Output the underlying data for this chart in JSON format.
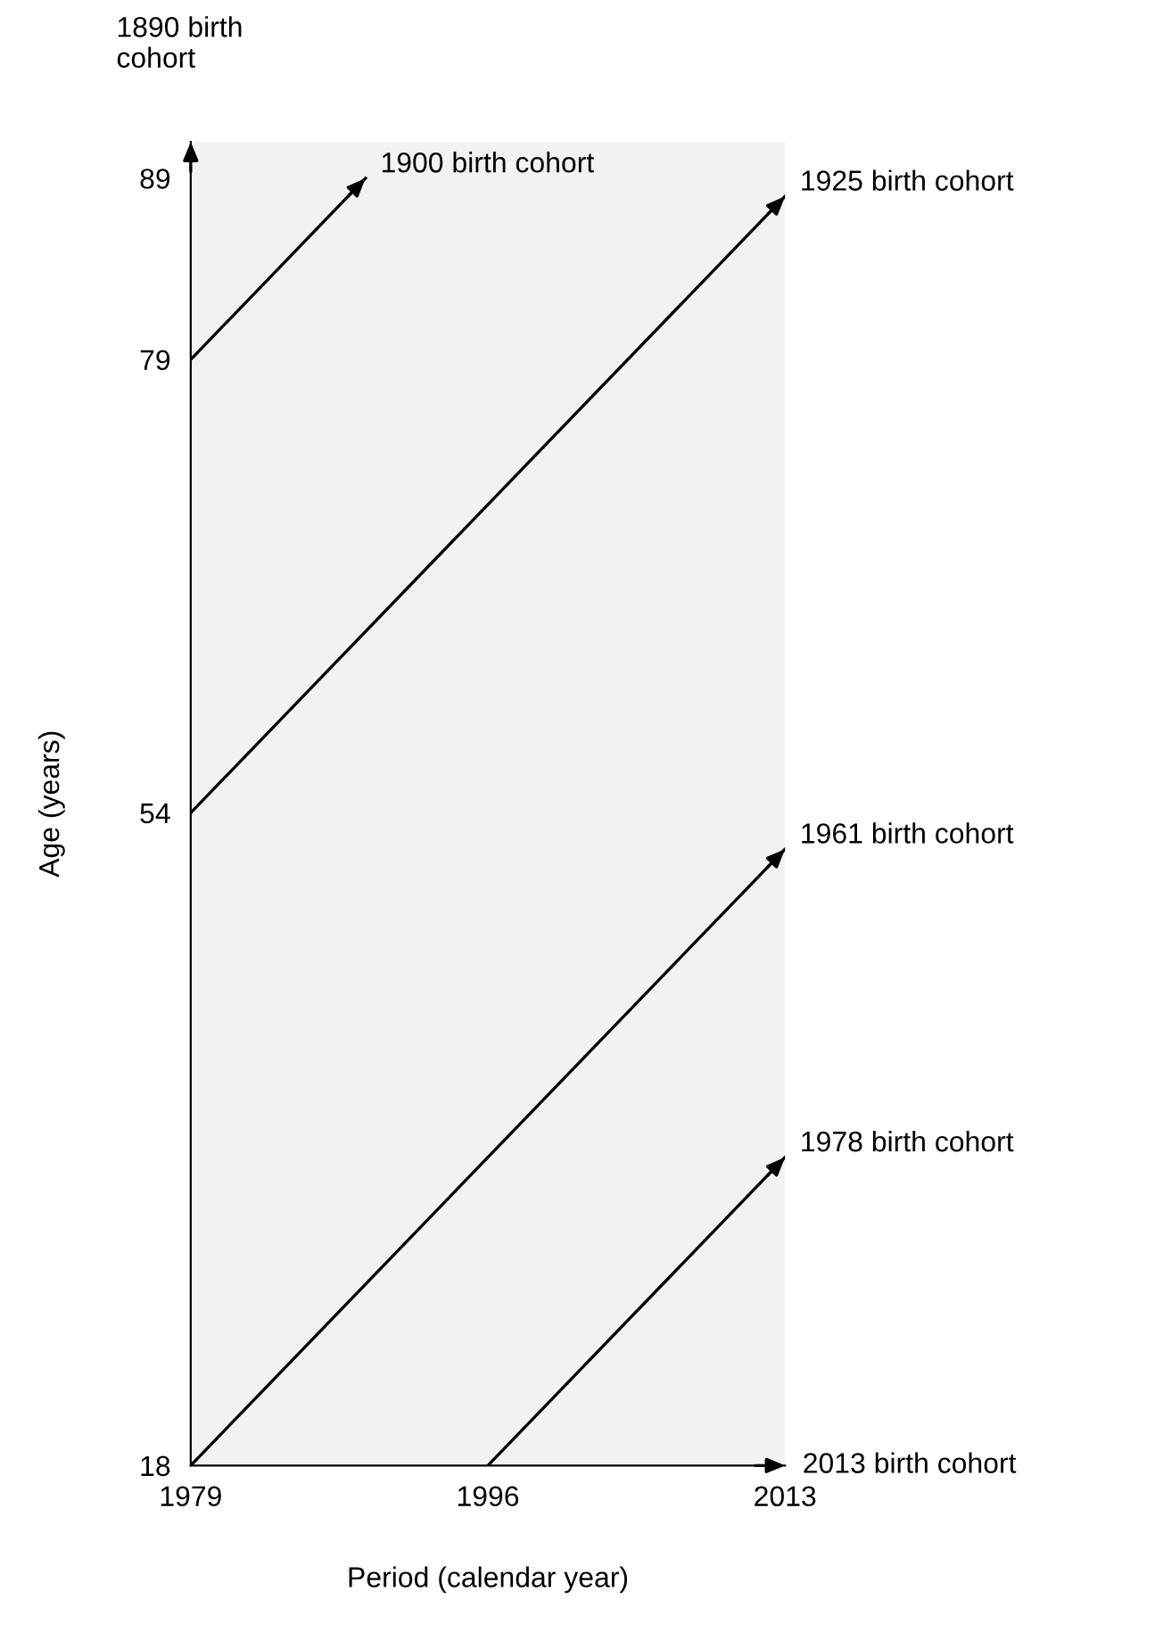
{
  "chart_data": {
    "type": "line",
    "xlabel": "Period (calendar year)",
    "ylabel": "Age (years)",
    "xlim": [
      1979,
      2013
    ],
    "ylim": [
      18,
      91
    ],
    "xticks": [
      1979,
      1996,
      2013
    ],
    "yticks": [
      18,
      54,
      79,
      89
    ],
    "series": [
      {
        "name": "1900 birth cohort",
        "color": "#000000",
        "x": [
          1979,
          1989
        ],
        "values": [
          79,
          89
        ]
      },
      {
        "name": "1925 birth cohort",
        "color": "#000000",
        "x": [
          1979,
          2013
        ],
        "values": [
          54,
          88
        ]
      },
      {
        "name": "1961 birth cohort",
        "color": "#000000",
        "x": [
          1979,
          2013
        ],
        "values": [
          18,
          52
        ]
      },
      {
        "name": "1978 birth cohort",
        "color": "#000000",
        "x": [
          1996,
          2013
        ],
        "values": [
          18,
          35
        ]
      }
    ],
    "annotations": [
      "1890 birth\ncohort",
      "2013 birth cohort"
    ],
    "grid": false,
    "legend": false,
    "line_style": "solid"
  }
}
